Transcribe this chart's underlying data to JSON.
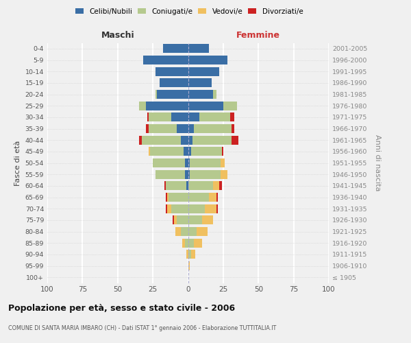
{
  "age_groups": [
    "100+",
    "95-99",
    "90-94",
    "85-89",
    "80-84",
    "75-79",
    "70-74",
    "65-69",
    "60-64",
    "55-59",
    "50-54",
    "45-49",
    "40-44",
    "35-39",
    "30-34",
    "25-29",
    "20-24",
    "15-19",
    "10-14",
    "5-9",
    "0-4"
  ],
  "birth_years": [
    "≤ 1905",
    "1906-1910",
    "1911-1915",
    "1916-1920",
    "1921-1925",
    "1926-1930",
    "1931-1935",
    "1936-1940",
    "1941-1945",
    "1946-1950",
    "1951-1955",
    "1956-1960",
    "1961-1965",
    "1966-1970",
    "1971-1975",
    "1976-1980",
    "1981-1985",
    "1986-1990",
    "1991-1995",
    "1996-2000",
    "2001-2005"
  ],
  "colors": {
    "celibi": "#3a6ea5",
    "coniugati": "#b5c98e",
    "vedovi": "#f0c060",
    "divorziati": "#cc2222"
  },
  "maschi": {
    "celibi": [
      0,
      0,
      0,
      0,
      0,
      0,
      0,
      0,
      1,
      2,
      2,
      3,
      5,
      8,
      12,
      30,
      22,
      20,
      23,
      32,
      18
    ],
    "coniugati": [
      0,
      0,
      0,
      2,
      5,
      8,
      12,
      14,
      15,
      21,
      23,
      24,
      28,
      20,
      16,
      5,
      1,
      0,
      0,
      0,
      0
    ],
    "vedovi": [
      0,
      0,
      1,
      2,
      4,
      2,
      3,
      1,
      0,
      0,
      0,
      1,
      0,
      0,
      0,
      0,
      0,
      0,
      0,
      0,
      0
    ],
    "divorziati": [
      0,
      0,
      0,
      0,
      0,
      1,
      1,
      1,
      1,
      0,
      0,
      0,
      2,
      2,
      1,
      0,
      0,
      0,
      0,
      0,
      0
    ]
  },
  "femmine": {
    "celibi": [
      0,
      0,
      0,
      0,
      0,
      0,
      0,
      0,
      0,
      1,
      1,
      2,
      3,
      4,
      8,
      25,
      18,
      17,
      22,
      28,
      15
    ],
    "coniugati": [
      0,
      0,
      2,
      4,
      6,
      10,
      12,
      15,
      18,
      22,
      22,
      22,
      28,
      27,
      22,
      10,
      2,
      0,
      0,
      0,
      0
    ],
    "vedovi": [
      0,
      1,
      3,
      6,
      8,
      8,
      8,
      5,
      4,
      5,
      3,
      0,
      0,
      0,
      0,
      0,
      0,
      0,
      0,
      0,
      0
    ],
    "divorziati": [
      0,
      0,
      0,
      0,
      0,
      0,
      1,
      1,
      2,
      0,
      0,
      1,
      5,
      2,
      3,
      0,
      0,
      0,
      0,
      0,
      0
    ]
  },
  "xlim": 100,
  "xlabel_maschi": "Maschi",
  "xlabel_femmine": "Femmine",
  "ylabel": "Fasce di età",
  "ylabel_right": "Anni di nascita",
  "title": "Popolazione per età, sesso e stato civile - 2006",
  "subtitle": "COMUNE DI SANTA MARIA IMBARO (CH) - Dati ISTAT 1° gennaio 2006 - Elaborazione TUTTITALIA.IT",
  "legend_labels": [
    "Celibi/Nubili",
    "Coniugati/e",
    "Vedovi/e",
    "Divorziati/e"
  ],
  "background_color": "#f0f0f0"
}
